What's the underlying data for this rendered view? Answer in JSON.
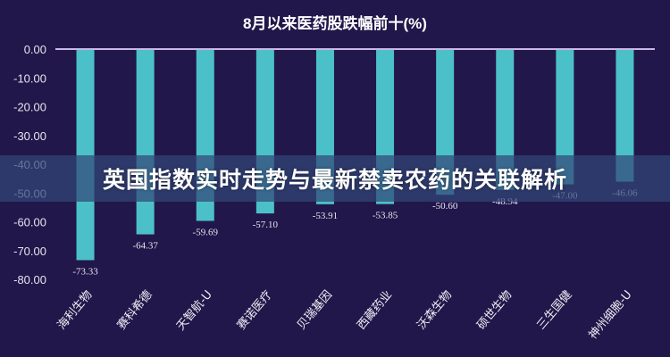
{
  "banner": {
    "text": "英国指数实时走势与最新禁卖农药的关联解析"
  },
  "chart_data": {
    "type": "bar",
    "title": "8月以来医药股跌幅前十(%)",
    "categories": [
      "海利生物",
      "赛科希德",
      "天智航-U",
      "赛诺医疗",
      "贝瑞基因",
      "西藏药业",
      "沃森生物",
      "硕世生物",
      "三生国健",
      "神州细胞-U"
    ],
    "values": [
      -73.33,
      -64.37,
      -59.69,
      -57.1,
      -53.91,
      -53.85,
      -50.6,
      -48.94,
      -47.0,
      -46.06
    ],
    "value_labels": [
      "-73.33",
      "-64.37",
      "-59.69",
      "-57.10",
      "-53.91",
      "-53.85",
      "-50.60",
      "-48.94",
      "-47.00",
      "-46.06"
    ],
    "ylim": [
      -80,
      0
    ],
    "yticks": [
      "0.00",
      "-10.00",
      "-20.00",
      "-30.00",
      "-40.00",
      "-50.00",
      "-60.00",
      "-70.00",
      "-80.00"
    ],
    "xlabel": "",
    "ylabel": "",
    "grid": false,
    "colors": {
      "bar": "#4cc0c8",
      "background": "#22174a",
      "axis": "#c9b8e8",
      "text": "#e8e4f0"
    }
  }
}
